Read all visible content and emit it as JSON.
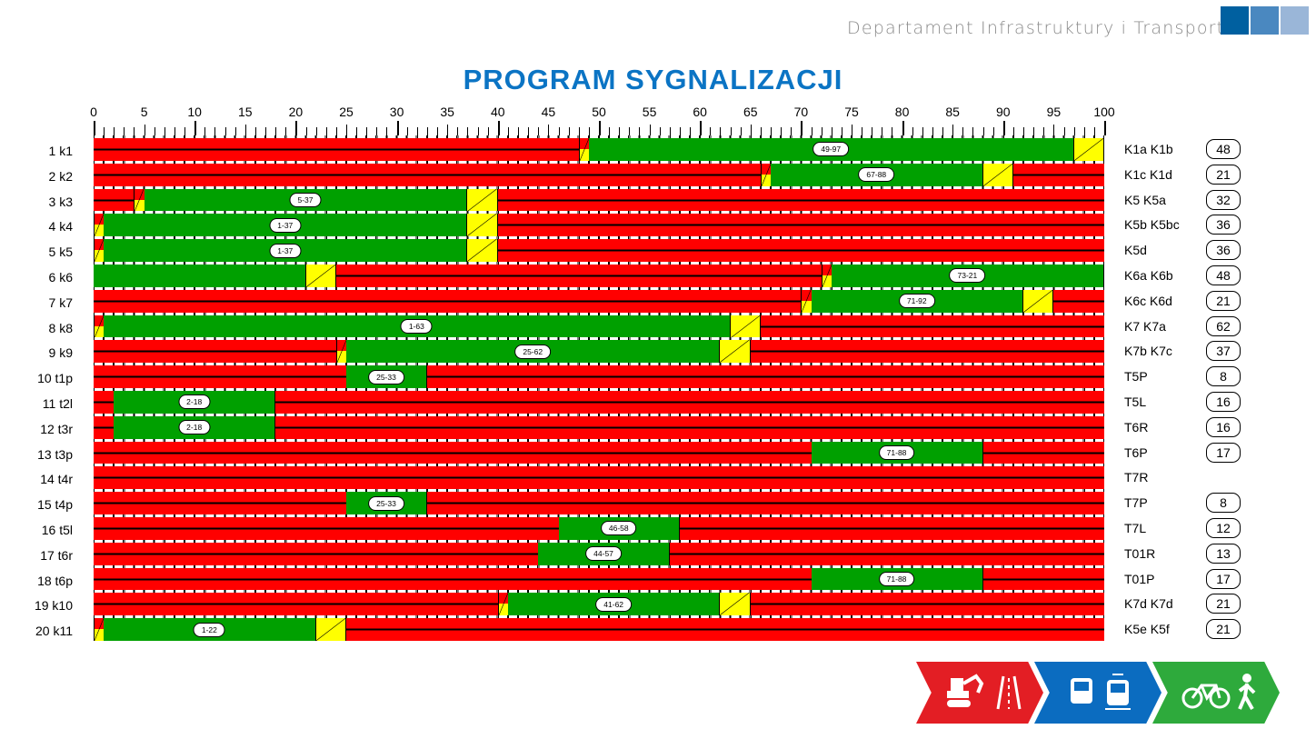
{
  "header": {
    "department": "Departament Infrastruktury i Transportu",
    "brand_colors": [
      "#0060a0",
      "#4a88c0",
      "#9ab6d8"
    ]
  },
  "title": "PROGRAM SYGNALIZACJI",
  "chart_data": {
    "type": "signal-timing-bar",
    "xlim": [
      0,
      100
    ],
    "xticks": [
      0,
      5,
      10,
      15,
      20,
      25,
      30,
      35,
      40,
      45,
      50,
      55,
      60,
      65,
      70,
      75,
      80,
      85,
      90,
      95,
      100
    ],
    "colors": {
      "red": "#ff0000",
      "green": "#00a000",
      "yellow": "#ffff00"
    },
    "rows": [
      {
        "name": "1 k1",
        "phases": "K1a K1b",
        "count": "48",
        "segments": [
          [
            0,
            48,
            "red"
          ],
          [
            48,
            49,
            "red-yellow"
          ],
          [
            49,
            97,
            "green",
            "49-97"
          ],
          [
            97,
            100,
            "yellow"
          ]
        ]
      },
      {
        "name": "2 k2",
        "phases": "K1c K1d",
        "count": "21",
        "segments": [
          [
            0,
            66,
            "red"
          ],
          [
            66,
            67,
            "red-yellow"
          ],
          [
            67,
            88,
            "green",
            "67-88"
          ],
          [
            88,
            91,
            "yellow"
          ],
          [
            91,
            100,
            "red"
          ]
        ]
      },
      {
        "name": "3 k3",
        "phases": "K5 K5a",
        "count": "32",
        "segments": [
          [
            0,
            4,
            "red"
          ],
          [
            4,
            5,
            "red-yellow"
          ],
          [
            5,
            37,
            "green",
            "5-37"
          ],
          [
            37,
            40,
            "yellow"
          ],
          [
            40,
            100,
            "red"
          ]
        ]
      },
      {
        "name": "4 k4",
        "phases": "K5b K5bc",
        "count": "36",
        "segments": [
          [
            0,
            1,
            "red-yellow"
          ],
          [
            1,
            37,
            "green",
            "1-37"
          ],
          [
            37,
            40,
            "yellow"
          ],
          [
            40,
            100,
            "red"
          ]
        ]
      },
      {
        "name": "5 k5",
        "phases": "K5d",
        "count": "36",
        "segments": [
          [
            0,
            1,
            "red-yellow"
          ],
          [
            1,
            37,
            "green",
            "1-37"
          ],
          [
            37,
            40,
            "yellow"
          ],
          [
            40,
            100,
            "red"
          ]
        ]
      },
      {
        "name": "6 k6",
        "phases": "K6a K6b",
        "count": "48",
        "segments": [
          [
            0,
            21,
            "green"
          ],
          [
            21,
            24,
            "yellow"
          ],
          [
            24,
            72,
            "red"
          ],
          [
            72,
            73,
            "red-yellow"
          ],
          [
            73,
            100,
            "green",
            "73-21"
          ]
        ]
      },
      {
        "name": "7 k7",
        "phases": "K6c K6d",
        "count": "21",
        "segments": [
          [
            0,
            70,
            "red"
          ],
          [
            70,
            71,
            "red-yellow"
          ],
          [
            71,
            92,
            "green",
            "71-92"
          ],
          [
            92,
            95,
            "yellow"
          ],
          [
            95,
            100,
            "red"
          ]
        ]
      },
      {
        "name": "8 k8",
        "phases": "K7 K7a",
        "count": "62",
        "segments": [
          [
            0,
            1,
            "red-yellow"
          ],
          [
            1,
            63,
            "green",
            "1-63"
          ],
          [
            63,
            66,
            "yellow"
          ],
          [
            66,
            100,
            "red"
          ]
        ]
      },
      {
        "name": "9 k9",
        "phases": "K7b K7c",
        "count": "37",
        "segments": [
          [
            0,
            24,
            "red"
          ],
          [
            24,
            25,
            "red-yellow"
          ],
          [
            25,
            62,
            "green",
            "25-62"
          ],
          [
            62,
            65,
            "yellow"
          ],
          [
            65,
            100,
            "red"
          ]
        ]
      },
      {
        "name": "10 t1p",
        "phases": "T5P",
        "count": "8",
        "segments": [
          [
            0,
            25,
            "red"
          ],
          [
            25,
            33,
            "green",
            "25-33"
          ],
          [
            33,
            100,
            "red"
          ]
        ]
      },
      {
        "name": "11 t2l",
        "phases": "T5L",
        "count": "16",
        "segments": [
          [
            0,
            2,
            "red"
          ],
          [
            2,
            18,
            "green",
            "2-18"
          ],
          [
            18,
            100,
            "red"
          ]
        ]
      },
      {
        "name": "12 t3r",
        "phases": "T6R",
        "count": "16",
        "segments": [
          [
            0,
            2,
            "red"
          ],
          [
            2,
            18,
            "green",
            "2-18"
          ],
          [
            18,
            100,
            "red"
          ]
        ]
      },
      {
        "name": "13 t3p",
        "phases": "T6P",
        "count": "17",
        "segments": [
          [
            0,
            71,
            "red"
          ],
          [
            71,
            88,
            "green",
            "71-88"
          ],
          [
            88,
            100,
            "red"
          ]
        ]
      },
      {
        "name": "14 t4r",
        "phases": "T7R",
        "count": "",
        "segments": [
          [
            0,
            100,
            "red"
          ]
        ]
      },
      {
        "name": "15 t4p",
        "phases": "T7P",
        "count": "8",
        "segments": [
          [
            0,
            25,
            "red"
          ],
          [
            25,
            33,
            "green",
            "25-33"
          ],
          [
            33,
            100,
            "red"
          ]
        ]
      },
      {
        "name": "16 t5l",
        "phases": "T7L",
        "count": "12",
        "segments": [
          [
            0,
            46,
            "red"
          ],
          [
            46,
            58,
            "green",
            "46-58"
          ],
          [
            58,
            100,
            "red"
          ]
        ]
      },
      {
        "name": "17 t6r",
        "phases": "T01R",
        "count": "13",
        "segments": [
          [
            0,
            44,
            "red"
          ],
          [
            44,
            57,
            "green",
            "44-57"
          ],
          [
            57,
            100,
            "red"
          ]
        ]
      },
      {
        "name": "18 t6p",
        "phases": "T01P",
        "count": "17",
        "segments": [
          [
            0,
            71,
            "red"
          ],
          [
            71,
            88,
            "green",
            "71-88"
          ],
          [
            88,
            100,
            "red"
          ]
        ]
      },
      {
        "name": "19 k10",
        "phases": "K7d K7d",
        "count": "21",
        "segments": [
          [
            0,
            40,
            "red"
          ],
          [
            40,
            41,
            "red-yellow"
          ],
          [
            41,
            62,
            "green",
            "41-62"
          ],
          [
            62,
            65,
            "yellow"
          ],
          [
            65,
            100,
            "red"
          ]
        ]
      },
      {
        "name": "20 k11",
        "phases": "K5e K5f",
        "count": "21",
        "segments": [
          [
            0,
            1,
            "red-yellow"
          ],
          [
            1,
            22,
            "green",
            "1-22"
          ],
          [
            22,
            25,
            "yellow"
          ],
          [
            25,
            100,
            "red"
          ]
        ]
      }
    ]
  },
  "footer_logos": [
    {
      "color": "#e31e24",
      "icons": [
        "excavator-icon",
        "road-icon"
      ]
    },
    {
      "color": "#0b6cc0",
      "icons": [
        "bus-icon",
        "tram-icon"
      ]
    },
    {
      "color": "#2eaa3c",
      "icons": [
        "bicycle-icon",
        "pedestrian-icon"
      ]
    }
  ]
}
